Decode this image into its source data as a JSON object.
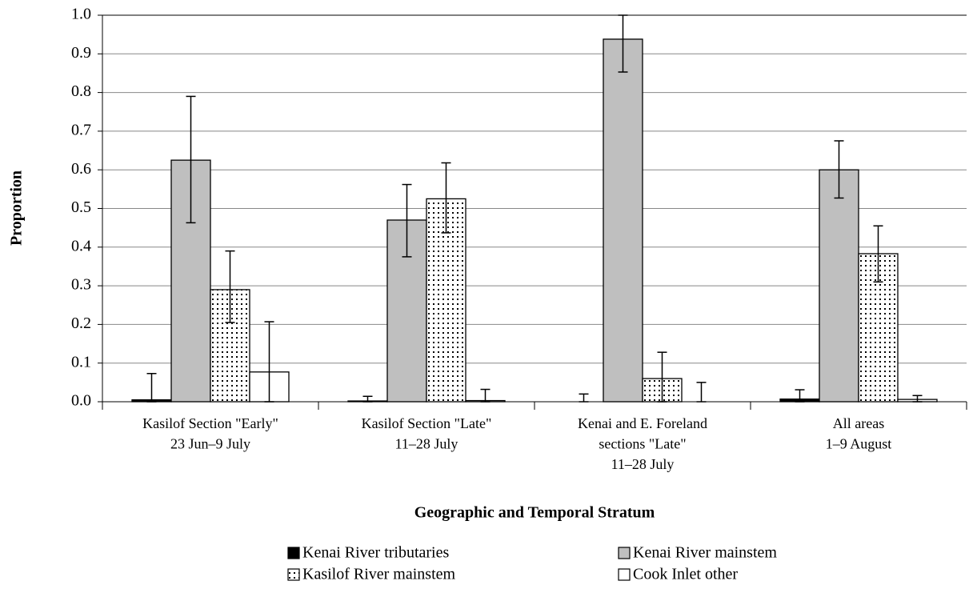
{
  "chart_data": {
    "type": "bar",
    "x_label": "Geographic and Temporal Stratum",
    "y_label": "Proportion",
    "categories": [
      [
        "Kasilof Section \"Early\"",
        "23 Jun–9 July"
      ],
      [
        "Kasilof  Section \"Late\"",
        "11–28 July"
      ],
      [
        "Kenai and E. Foreland",
        "sections \"Late\"",
        "11–28 July"
      ],
      [
        "All areas",
        "1–9 August"
      ]
    ],
    "series": [
      {
        "name": "Kenai River tributaries",
        "color": "#000000",
        "values": [
          0.005,
          0.002,
          0.0,
          0.007
        ],
        "err_minus": [
          0.005,
          0.002,
          0.0,
          0.007
        ],
        "err_plus": [
          0.068,
          0.012,
          0.02,
          0.024
        ]
      },
      {
        "name": "Kenai River mainstem",
        "color": "#bfbfbf",
        "values": [
          0.625,
          0.47,
          0.938,
          0.6
        ],
        "err_minus": [
          0.162,
          0.095,
          0.085,
          0.073
        ],
        "err_plus": [
          0.165,
          0.092,
          0.062,
          0.075
        ]
      },
      {
        "name": "Kasilof River mainstem",
        "color": "#ffffff",
        "pattern": "dots",
        "values": [
          0.29,
          0.525,
          0.06,
          0.383
        ],
        "err_minus": [
          0.085,
          0.088,
          0.06,
          0.073
        ],
        "err_plus": [
          0.1,
          0.093,
          0.068,
          0.072
        ]
      },
      {
        "name": "Cook Inlet other",
        "color": "#ffffff",
        "values": [
          0.077,
          0.003,
          0.0,
          0.006
        ],
        "err_minus": [
          0.077,
          0.003,
          0.0,
          0.006
        ],
        "err_plus": [
          0.13,
          0.029,
          0.05,
          0.01
        ]
      }
    ],
    "ylim": [
      0,
      1
    ],
    "yticks": [
      {
        "value": 0,
        "label": "0.0"
      },
      {
        "value": 0.1,
        "label": "0.1"
      },
      {
        "value": 0.2,
        "label": "0.2"
      },
      {
        "value": 0.3,
        "label": "0.3"
      },
      {
        "value": 0.4,
        "label": "0.4"
      },
      {
        "value": 0.5,
        "label": "0.5"
      },
      {
        "value": 0.6,
        "label": "0.6"
      },
      {
        "value": 0.7,
        "label": "0.7"
      },
      {
        "value": 0.8,
        "label": "0.8"
      },
      {
        "value": 0.9,
        "label": "0.9"
      },
      {
        "value": 1,
        "label": "1.0"
      }
    ],
    "grid": true,
    "legend": "bottom"
  }
}
